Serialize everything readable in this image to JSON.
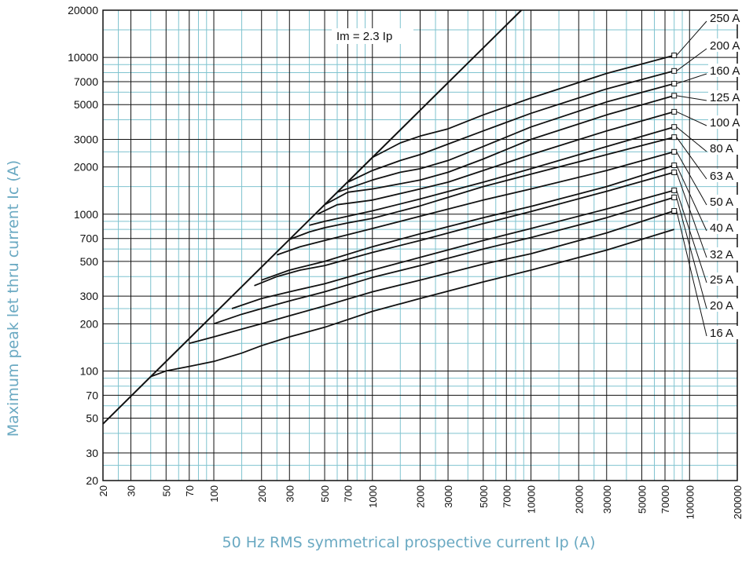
{
  "chart_data": {
    "type": "line",
    "title": "",
    "xlabel": "50 Hz RMS symmetrical prospective current Ip (A)",
    "ylabel": "Maximum peak let thru current Ic (A)",
    "x_scale": "log",
    "y_scale": "log",
    "xlim": [
      20,
      200000
    ],
    "ylim": [
      20,
      20000
    ],
    "grid": true,
    "x_ticks": [
      "20",
      "30",
      "50",
      "70",
      "100",
      "200",
      "300",
      "500",
      "700",
      "1000",
      "2000",
      "3000",
      "5000",
      "7000",
      "10000",
      "20000",
      "30000",
      "50000",
      "70000",
      "100000",
      "200000"
    ],
    "y_ticks": [
      "20",
      "30",
      "50",
      "70",
      "100",
      "200",
      "300",
      "500",
      "700",
      "1000",
      "2000",
      "3000",
      "5000",
      "7000",
      "10000",
      "20000"
    ],
    "reference_line": {
      "label": "Im = 2.3 Ip",
      "x": [
        20,
        8695
      ],
      "y": [
        46,
        20000
      ]
    },
    "series": [
      {
        "name": "250 A",
        "x": [
          800,
          1000,
          1500,
          2000,
          3000,
          5000,
          10000,
          30000,
          80000
        ],
        "y": [
          1840,
          2300,
          2850,
          3150,
          3500,
          4300,
          5500,
          7900,
          10300
        ]
      },
      {
        "name": "200 A",
        "x": [
          700,
          1000,
          1500,
          2000,
          3000,
          5000,
          10000,
          30000,
          80000
        ],
        "y": [
          1600,
          1900,
          2200,
          2400,
          2800,
          3400,
          4400,
          6300,
          8200
        ]
      },
      {
        "name": "160 A",
        "x": [
          600,
          1000,
          1500,
          2000,
          3000,
          5000,
          10000,
          30000,
          80000
        ],
        "y": [
          1380,
          1650,
          1850,
          1950,
          2200,
          2700,
          3600,
          5200,
          6800
        ]
      },
      {
        "name": "125 A",
        "x": [
          500,
          700,
          1000,
          2000,
          3000,
          5000,
          10000,
          30000,
          80000
        ],
        "y": [
          1150,
          1380,
          1450,
          1650,
          1850,
          2250,
          3000,
          4300,
          5700
        ]
      },
      {
        "name": "100 A",
        "x": [
          450,
          600,
          1000,
          2000,
          3000,
          5000,
          10000,
          30000,
          80000
        ],
        "y": [
          1000,
          1150,
          1230,
          1450,
          1600,
          1900,
          2400,
          3400,
          4500
        ]
      },
      {
        "name": "80 A",
        "x": [
          400,
          500,
          700,
          1000,
          2000,
          5000,
          10000,
          30000,
          80000
        ],
        "y": [
          850,
          900,
          970,
          1050,
          1250,
          1600,
          1950,
          2700,
          3600
        ]
      },
      {
        "name": "63 A",
        "x": [
          300,
          400,
          500,
          700,
          1000,
          2000,
          5000,
          10000,
          30000,
          80000
        ],
        "y": [
          690,
          770,
          820,
          880,
          940,
          1130,
          1500,
          1800,
          2400,
          3100
        ]
      },
      {
        "name": "50 A",
        "x": [
          250,
          350,
          500,
          700,
          1000,
          2000,
          5000,
          10000,
          30000,
          80000
        ],
        "y": [
          550,
          620,
          680,
          740,
          810,
          970,
          1230,
          1450,
          1900,
          2500
        ]
      },
      {
        "name": "40 A",
        "x": [
          200,
          300,
          500,
          1000,
          2000,
          5000,
          10000,
          30000,
          80000
        ],
        "y": [
          380,
          440,
          500,
          620,
          750,
          950,
          1120,
          1500,
          2050
        ]
      },
      {
        "name": "32 A",
        "x": [
          180,
          250,
          350,
          500,
          1000,
          2000,
          5000,
          10000,
          30000,
          80000
        ],
        "y": [
          350,
          400,
          440,
          470,
          570,
          680,
          870,
          1040,
          1400,
          1850
        ]
      },
      {
        "name": "25 A",
        "x": [
          130,
          200,
          300,
          500,
          1000,
          2000,
          5000,
          10000,
          30000,
          80000
        ],
        "y": [
          250,
          290,
          320,
          360,
          440,
          530,
          680,
          810,
          1080,
          1420
        ]
      },
      {
        "name": "20 A",
        "x": [
          100,
          150,
          200,
          300,
          500,
          1000,
          2000,
          5000,
          10000,
          30000,
          80000
        ],
        "y": [
          200,
          230,
          250,
          280,
          320,
          395,
          470,
          600,
          710,
          950,
          1280
        ]
      },
      {
        "name": "16 A",
        "x": [
          70,
          100,
          150,
          200,
          300,
          500,
          1000,
          2000,
          5000,
          10000,
          30000,
          80000
        ],
        "y": [
          150,
          165,
          185,
          200,
          225,
          260,
          320,
          380,
          480,
          560,
          760,
          1050
        ]
      },
      {
        "name": "",
        "x": [
          40,
          50,
          70,
          100,
          150,
          200,
          300,
          500,
          1000,
          2000,
          5000,
          10000,
          30000,
          80000
        ],
        "y": [
          92,
          100,
          107,
          115,
          130,
          145,
          165,
          190,
          240,
          290,
          370,
          440,
          590,
          800
        ]
      }
    ]
  }
}
